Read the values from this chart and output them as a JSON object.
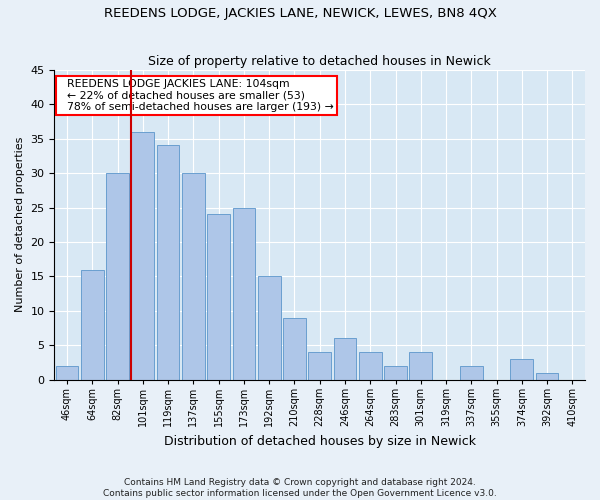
{
  "title": "REEDENS LODGE, JACKIES LANE, NEWICK, LEWES, BN8 4QX",
  "subtitle": "Size of property relative to detached houses in Newick",
  "xlabel": "Distribution of detached houses by size in Newick",
  "ylabel": "Number of detached properties",
  "footer1": "Contains HM Land Registry data © Crown copyright and database right 2024.",
  "footer2": "Contains public sector information licensed under the Open Government Licence v3.0.",
  "annotation_line1": "REEDENS LODGE JACKIES LANE: 104sqm",
  "annotation_line2": "← 22% of detached houses are smaller (53)",
  "annotation_line3": "78% of semi-detached houses are larger (193) →",
  "bar_color": "#aec6e8",
  "bar_edge_color": "#6a9fd0",
  "redline_color": "#cc0000",
  "categories": [
    "46sqm",
    "64sqm",
    "82sqm",
    "101sqm",
    "119sqm",
    "137sqm",
    "155sqm",
    "173sqm",
    "192sqm",
    "210sqm",
    "228sqm",
    "246sqm",
    "264sqm",
    "283sqm",
    "301sqm",
    "319sqm",
    "337sqm",
    "355sqm",
    "374sqm",
    "392sqm",
    "410sqm"
  ],
  "values": [
    2,
    16,
    30,
    36,
    34,
    30,
    24,
    25,
    15,
    9,
    4,
    6,
    4,
    2,
    4,
    0,
    2,
    0,
    3,
    1,
    0
  ],
  "redline_bar_index": 3,
  "ylim": [
    0,
    45
  ],
  "yticks": [
    0,
    5,
    10,
    15,
    20,
    25,
    30,
    35,
    40,
    45
  ],
  "background_color": "#e8f0f8",
  "plot_background": "#d8e8f4"
}
